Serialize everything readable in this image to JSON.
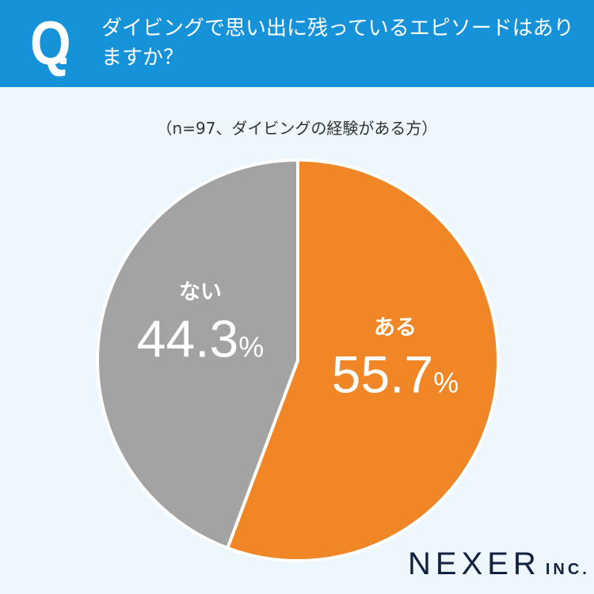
{
  "header": {
    "q_mark": "Q",
    "title": "ダイビングで思い出に残っているエピソードはありますか？"
  },
  "note": "（n=97、ダイビングの経験がある方）",
  "chart_data": {
    "type": "pie",
    "title": "ダイビングで思い出に残っているエピソードはありますか？",
    "slices": [
      {
        "label": "ある",
        "value": 55.7,
        "value_label": "55.7",
        "unit": "%",
        "color": "#f08626"
      },
      {
        "label": "ない",
        "value": 44.3,
        "value_label": "44.3",
        "unit": "%",
        "color": "#a3a3a3"
      }
    ],
    "start": "top",
    "direction": "clockwise"
  },
  "logo": {
    "name": "NEXER",
    "suffix": "INC."
  }
}
